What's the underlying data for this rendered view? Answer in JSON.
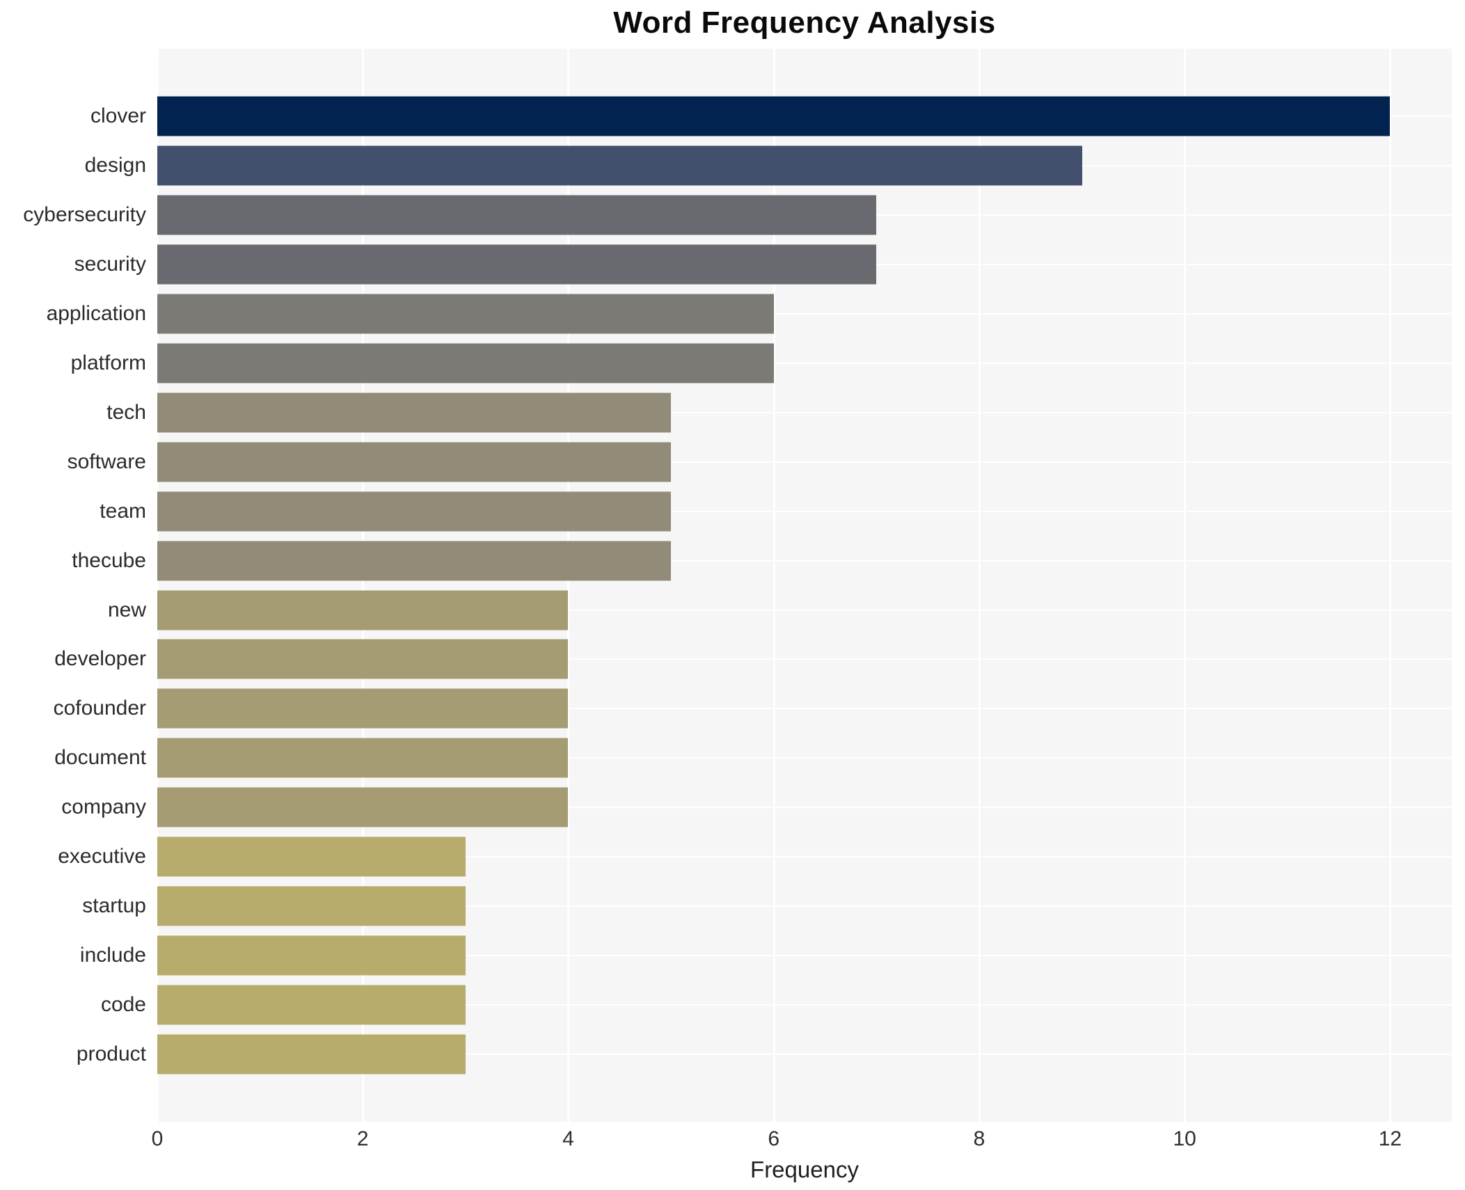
{
  "title": "Word Frequency Analysis",
  "chart_data": {
    "type": "bar",
    "orientation": "horizontal",
    "title": "Word Frequency Analysis",
    "xlabel": "Frequency",
    "ylabel": "",
    "categories": [
      "clover",
      "design",
      "cybersecurity",
      "security",
      "application",
      "platform",
      "tech",
      "software",
      "team",
      "thecube",
      "new",
      "developer",
      "cofounder",
      "document",
      "company",
      "executive",
      "startup",
      "include",
      "code",
      "product"
    ],
    "values": [
      12,
      9,
      7,
      7,
      6,
      6,
      5,
      5,
      5,
      5,
      4,
      4,
      4,
      4,
      4,
      3,
      3,
      3,
      3,
      3
    ],
    "bar_colors": [
      "#02234f",
      "#42506e",
      "#696a70",
      "#696a70",
      "#7b7a75",
      "#7b7a75",
      "#918b77",
      "#918b77",
      "#918b77",
      "#918b77",
      "#a59c73",
      "#a59c73",
      "#a59c73",
      "#a59c73",
      "#a59c73",
      "#b7ac6b",
      "#b7ac6b",
      "#b7ac6b",
      "#b7ac6b",
      "#b7ac6b"
    ],
    "xticks": [
      0,
      2,
      4,
      6,
      8,
      10,
      12
    ],
    "xlim": [
      0,
      12.6
    ],
    "grid": true,
    "plot_background": "#f6f6f7",
    "grid_color": "#ffffff",
    "legend": "none"
  }
}
